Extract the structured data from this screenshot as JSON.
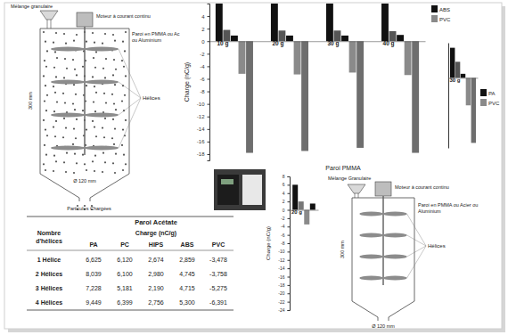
{
  "chart_data": [
    {
      "type": "bar",
      "title": "Paroi PMMA",
      "y_label": "Charge (nC/g)",
      "categories": [
        "10 g",
        "20 g",
        "30 g",
        "40 g"
      ],
      "series": [
        {
          "color": "#111111",
          "values": [
            6,
            6,
            6,
            6
          ]
        },
        {
          "color": "#555555",
          "values": [
            1.8,
            1.7,
            1.7,
            1.6
          ]
        },
        {
          "name": "ABS",
          "color": "#111111",
          "values": [
            0.9,
            0.9,
            0.9,
            1.0
          ]
        },
        {
          "name": "PVC",
          "color": "#8a8a8a",
          "values": [
            -5.2,
            -5.3,
            -5.0,
            -5.4
          ]
        },
        {
          "color": "#6e6e6e",
          "values": [
            -17.8,
            -17.5,
            -17.0,
            -17.8
          ]
        }
      ],
      "ylim": [
        -19,
        6
      ],
      "yticks": [
        4,
        2,
        0,
        -2,
        -4,
        -6,
        -8,
        -10,
        -12,
        -14,
        -16,
        -18
      ],
      "legend": "right"
    },
    {
      "type": "bar",
      "categories": [
        "30 g"
      ],
      "series": [
        {
          "name": "PA",
          "color": "#111111",
          "values": [
            6
          ]
        },
        {
          "color": "#555555",
          "values": [
            3.2
          ]
        },
        {
          "color": "#111111",
          "values": [
            0.8
          ]
        },
        {
          "name": "PVC",
          "color": "#8a8a8a",
          "values": [
            -5.5
          ]
        },
        {
          "color": "#6e6e6e",
          "values": [
            -13
          ]
        }
      ],
      "ylim": [
        -14,
        7
      ],
      "tick_labels": "x",
      "legend": "right"
    },
    {
      "type": "bar",
      "y_label": "Charge (nC/g)",
      "categories": [
        "20 g"
      ],
      "series": [
        {
          "color": "#111111",
          "values": [
            6
          ]
        },
        {
          "color": "#777777",
          "values": [
            2
          ]
        },
        {
          "color": "#8a8a8a",
          "values": [
            -3.5
          ]
        },
        {
          "color": "#111111",
          "values": [
            1.5
          ]
        }
      ],
      "ylim": [
        -24,
        8
      ],
      "yticks": [
        8,
        6,
        4,
        2,
        0,
        -2,
        -4,
        -6,
        -8,
        -10,
        -12,
        -14,
        -16,
        -18,
        -20,
        -22,
        -24
      ]
    }
  ],
  "diagrams": [
    {
      "mixture": "Mélange granulaire",
      "motor": "Moteur à courant continu",
      "wall": "Paroi en PMMA ou Ac ou Aluminium",
      "helices": "Hélices",
      "height": "300 mm",
      "diameter": "Ø 120 mm",
      "outlet": "Particules Chargées"
    },
    {
      "mixture": "Mélange Granulaire",
      "motor": "Moteur à courant continu",
      "wall": "Paroi en PMMA ou Acier ou Aluminium",
      "helices": "Hélices",
      "height": "300 mm",
      "diameter": "Ø 120 mm"
    }
  ],
  "table": {
    "title": "Paroi Acétate",
    "subtitle": "Charge (nC/g)",
    "row_header": [
      "Nombre",
      "d'hélices"
    ],
    "columns": [
      "PA",
      "PC",
      "HIPS",
      "ABS",
      "PVC"
    ],
    "rows": [
      [
        "1 Hélice",
        "6,625",
        "6,120",
        "2,674",
        "2,859",
        "-3,478"
      ],
      [
        "2 Hélices",
        "8,039",
        "6,100",
        "2,980",
        "4,745",
        "-3,758"
      ],
      [
        "3 Hélices",
        "7,228",
        "5,181",
        "2,190",
        "4,715",
        "-5,275"
      ],
      [
        "4 Hélices",
        "9,449",
        "6,399",
        "2,756",
        "5,300",
        "-6,391"
      ]
    ]
  }
}
